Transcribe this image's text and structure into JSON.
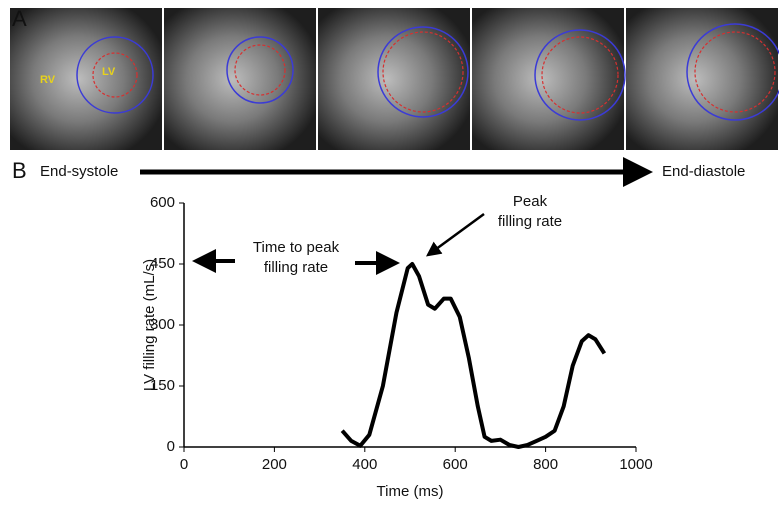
{
  "panel_labels": [
    "A",
    "B"
  ],
  "images": {
    "labels": [
      "RV",
      "LV"
    ],
    "start": "End-systole",
    "end": "End-diastole"
  },
  "chart_data": {
    "type": "line",
    "x_label": "Time (ms)",
    "y_label": "LV filling rate (mL/s)",
    "x": [
      350,
      370,
      390,
      410,
      440,
      470,
      495,
      505,
      520,
      540,
      555,
      575,
      590,
      610,
      630,
      650,
      665,
      680,
      700,
      720,
      740,
      760,
      780,
      800,
      820,
      840,
      860,
      880,
      895,
      910,
      930
    ],
    "series": [
      {
        "color": "#000000",
        "values": [
          40,
          15,
          3,
          30,
          150,
          330,
          440,
          450,
          420,
          350,
          340,
          365,
          365,
          320,
          220,
          100,
          25,
          15,
          18,
          5,
          0,
          5,
          15,
          25,
          40,
          100,
          200,
          260,
          275,
          265,
          230
        ]
      }
    ],
    "xlim": [
      0,
      1000
    ],
    "xticks": [
      0,
      200,
      400,
      600,
      800,
      1000
    ],
    "ylim": [
      0,
      600
    ],
    "yticks": [
      0,
      150,
      300,
      450,
      600
    ],
    "annotations": [
      {
        "lines": [
          "Time to peak",
          "filling rate"
        ]
      },
      {
        "lines": [
          "Peak",
          "filling rate"
        ]
      }
    ]
  }
}
